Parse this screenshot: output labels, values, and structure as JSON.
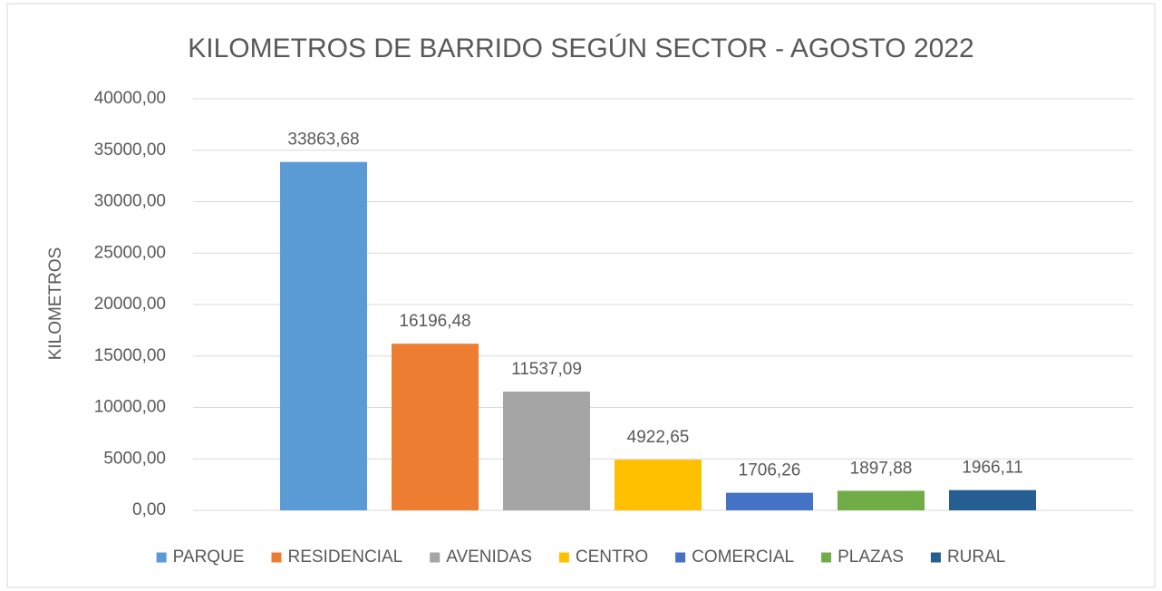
{
  "chart_data": {
    "type": "bar",
    "title": "KILOMETROS DE BARRIDO SEGÚN SECTOR - AGOSTO 2022",
    "y_label": "KILOMETROS",
    "categories": [
      "PARQUE",
      "RESIDENCIAL",
      "AVENIDAS",
      "CENTRO",
      "COMERCIAL",
      "PLAZAS",
      "RURAL"
    ],
    "values": [
      33863.68,
      16196.48,
      11537.09,
      4922.65,
      1706.26,
      1897.88,
      1966.11
    ],
    "value_labels": [
      "33863,68",
      "16196,48",
      "11537,09",
      "4922,65",
      "1706,26",
      "1897,88",
      "1966,11"
    ],
    "colors": [
      "#5b9bd5",
      "#ed7d31",
      "#a5a5a5",
      "#ffc000",
      "#4472c4",
      "#70ad47",
      "#255e91"
    ],
    "ylim": [
      0,
      40000
    ],
    "yticks": [
      {
        "value": 0,
        "label": "0,00"
      },
      {
        "value": 5000,
        "label": "5000,00"
      },
      {
        "value": 10000,
        "label": "10000,00"
      },
      {
        "value": 15000,
        "label": "15000,00"
      },
      {
        "value": 20000,
        "label": "20000,00"
      },
      {
        "value": 25000,
        "label": "25000,00"
      },
      {
        "value": 30000,
        "label": "30000,00"
      },
      {
        "value": 35000,
        "label": "35000,00"
      },
      {
        "value": 40000,
        "label": "40000,00"
      }
    ],
    "grid": true,
    "legend": "bottom"
  }
}
